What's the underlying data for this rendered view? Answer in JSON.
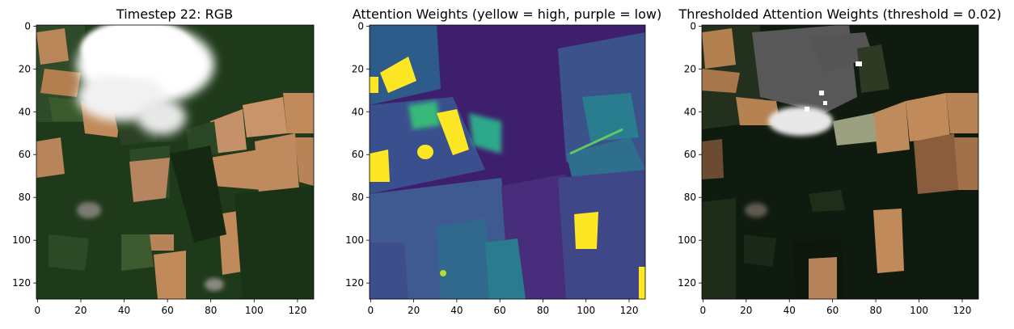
{
  "panels": [
    {
      "id": "rgb",
      "title": "Timestep 22: RGB",
      "kind": "rgb"
    },
    {
      "id": "attention",
      "title": "Attention Weights (yellow = high, purple = low)",
      "kind": "attention"
    },
    {
      "id": "thresholded",
      "title": "Thresholded Attention Weights (threshold = 0.02)",
      "kind": "thresholded"
    }
  ],
  "axes": {
    "x_ticks": [
      "0",
      "20",
      "40",
      "60",
      "80",
      "100",
      "120"
    ],
    "y_ticks": [
      "0",
      "20",
      "40",
      "60",
      "80",
      "100",
      "120"
    ],
    "xlim": [
      0,
      128
    ],
    "ylim": [
      128,
      0
    ]
  },
  "colors": {
    "field_dark_green": "#1f3a1a",
    "field_mid_green": "#2e4a26",
    "field_tan": "#c08a5a",
    "cloud_white": "#ffffff",
    "viridis_purple": "#440154",
    "viridis_blue": "#3b528b",
    "viridis_teal": "#21918c",
    "viridis_green": "#5ec962",
    "viridis_yellow": "#fde725",
    "mask_grey": "#555555"
  }
}
